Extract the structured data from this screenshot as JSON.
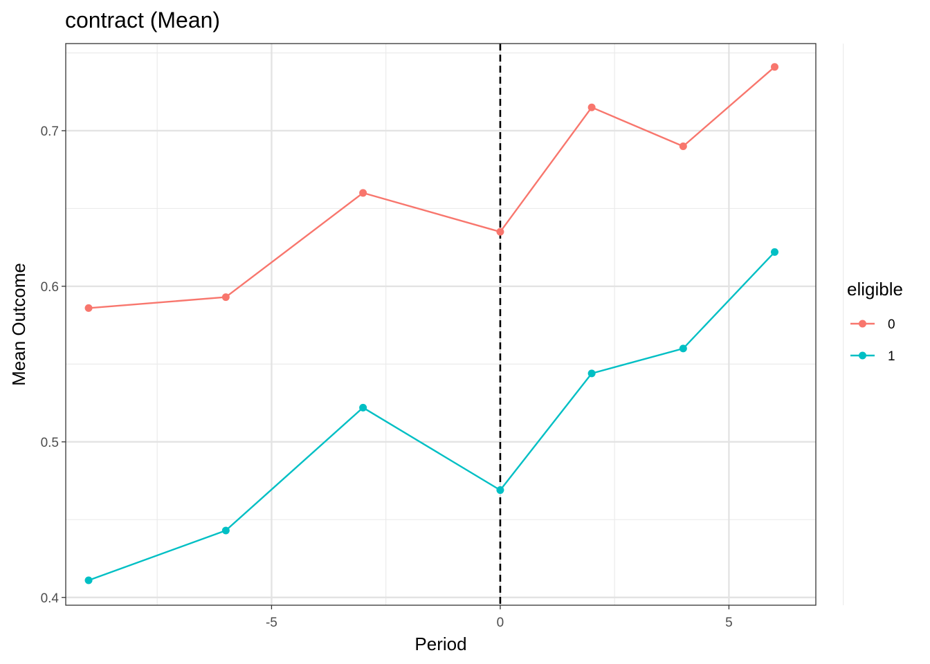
{
  "chart_data": {
    "type": "line",
    "title": "contract (Mean)",
    "xlabel": "Period",
    "ylabel": "Mean Outcome",
    "xlim": [
      -9.5,
      6.9
    ],
    "ylim": [
      0.395,
      0.756
    ],
    "x_ticks": [
      -5,
      0,
      5
    ],
    "y_ticks": [
      0.4,
      0.5,
      0.6,
      0.7
    ],
    "x_tick_labels": [
      "-5",
      "0",
      "5"
    ],
    "y_tick_labels": [
      "0.4",
      "0.5",
      "0.6",
      "0.7"
    ],
    "grid": true,
    "legend": {
      "title": "eligible",
      "position": "right"
    },
    "vline": {
      "x": 0,
      "style": "dashed",
      "color": "#000000"
    },
    "x": [
      -9,
      -6,
      -3,
      0,
      2,
      4,
      6
    ],
    "series": [
      {
        "name": "0",
        "color": "#F8766D",
        "values": [
          0.586,
          0.593,
          0.66,
          0.635,
          0.715,
          0.69,
          0.741
        ]
      },
      {
        "name": "1",
        "color": "#00BFC4",
        "values": [
          0.411,
          0.443,
          0.522,
          0.469,
          0.544,
          0.56,
          0.622
        ]
      }
    ]
  }
}
